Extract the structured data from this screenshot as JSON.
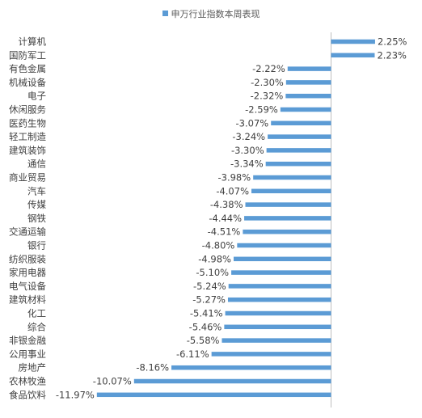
{
  "chart_data": {
    "type": "bar",
    "orientation": "horizontal",
    "legend": "top-center",
    "grid": false,
    "xlim": [
      -12.5,
      3.2
    ],
    "bar_color": "#5b9bd5",
    "series": [
      {
        "name": "申万行业指数本周表现",
        "categories": [
          "计算机",
          "国防军工",
          "有色金属",
          "机械设备",
          "电子",
          "休闲服务",
          "医药生物",
          "轻工制造",
          "建筑装饰",
          "通信",
          "商业贸易",
          "汽车",
          "传媒",
          "钢铁",
          "交通运输",
          "银行",
          "纺织服装",
          "家用电器",
          "电气设备",
          "建筑材料",
          "化工",
          "综合",
          "非银金融",
          "公用事业",
          "房地产",
          "农林牧渔",
          "食品饮料"
        ],
        "values": [
          2.25,
          2.23,
          -2.22,
          -2.3,
          -2.32,
          -2.59,
          -3.07,
          -3.24,
          -3.3,
          -3.34,
          -3.98,
          -4.07,
          -4.38,
          -4.44,
          -4.51,
          -4.8,
          -4.98,
          -5.1,
          -5.24,
          -5.27,
          -5.41,
          -5.46,
          -5.58,
          -6.11,
          -8.16,
          -10.07,
          -11.97
        ],
        "labels": [
          "2.25%",
          "2.23%",
          "-2.22%",
          "-2.30%",
          "-2.32%",
          "-2.59%",
          "-3.07%",
          "-3.24%",
          "-3.30%",
          "-3.34%",
          "-3.98%",
          "-4.07%",
          "-4.38%",
          "-4.44%",
          "-4.51%",
          "-4.80%",
          "-4.98%",
          "-5.10%",
          "-5.24%",
          "-5.27%",
          "-5.41%",
          "-5.46%",
          "-5.58%",
          "-6.11%",
          "-8.16%",
          "-10.07%",
          "-11.97%"
        ]
      }
    ]
  }
}
